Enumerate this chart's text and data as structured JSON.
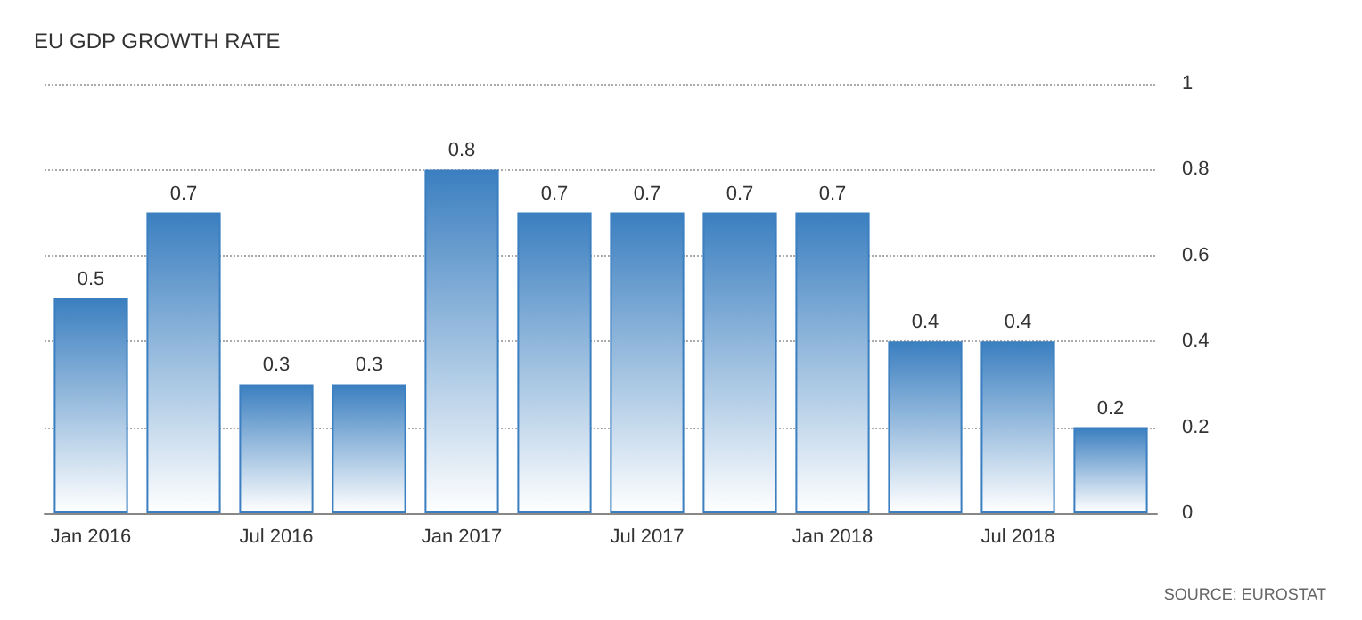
{
  "chart_data": {
    "type": "bar",
    "title": "EU GDP GROWTH RATE",
    "categories": [
      "Jan 2016",
      null,
      "Jul 2016",
      null,
      "Jan 2017",
      null,
      "Jul 2017",
      null,
      "Jan 2018",
      null,
      "Jul 2018",
      null
    ],
    "values": [
      0.5,
      0.7,
      0.3,
      0.3,
      0.8,
      0.7,
      0.7,
      0.7,
      0.7,
      0.4,
      0.4,
      0.2
    ],
    "color": "#3b7fc0",
    "ylim": [
      0,
      1
    ],
    "yticks": [
      0,
      0.2,
      0.4,
      0.6,
      0.8,
      1
    ],
    "grid": "y",
    "data_labels": true,
    "annotations": [
      "SOURCE: EUROSTAT"
    ]
  }
}
